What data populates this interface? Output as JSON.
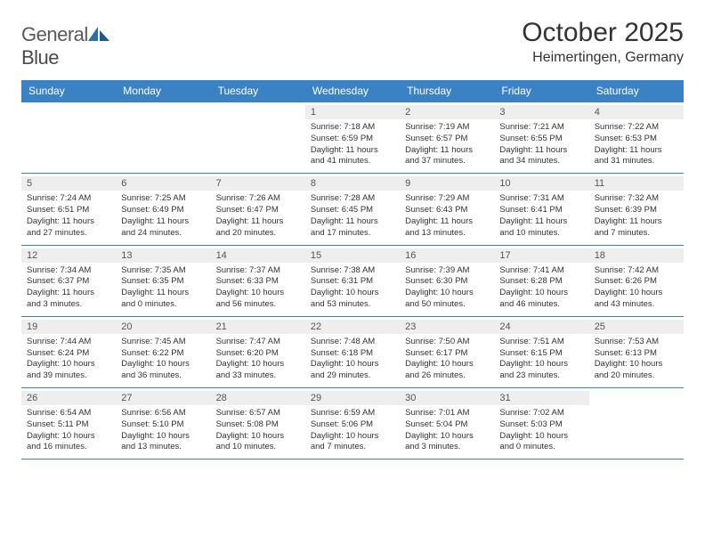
{
  "brand": {
    "text1": "General",
    "text2": "Blue",
    "logo_color": "#2f6fa8"
  },
  "title": "October 2025",
  "location": "Heimertingen, Germany",
  "colors": {
    "header_bg": "#3b82c4",
    "header_fg": "#ffffff",
    "daynum_bg": "#eeeeee",
    "border": "#3b82c4"
  },
  "weekdays": [
    "Sunday",
    "Monday",
    "Tuesday",
    "Wednesday",
    "Thursday",
    "Friday",
    "Saturday"
  ],
  "weeks": [
    [
      {
        "day": "",
        "sunrise": "",
        "sunset": "",
        "daylight": ""
      },
      {
        "day": "",
        "sunrise": "",
        "sunset": "",
        "daylight": ""
      },
      {
        "day": "",
        "sunrise": "",
        "sunset": "",
        "daylight": ""
      },
      {
        "day": "1",
        "sunrise": "Sunrise: 7:18 AM",
        "sunset": "Sunset: 6:59 PM",
        "daylight": "Daylight: 11 hours and 41 minutes."
      },
      {
        "day": "2",
        "sunrise": "Sunrise: 7:19 AM",
        "sunset": "Sunset: 6:57 PM",
        "daylight": "Daylight: 11 hours and 37 minutes."
      },
      {
        "day": "3",
        "sunrise": "Sunrise: 7:21 AM",
        "sunset": "Sunset: 6:55 PM",
        "daylight": "Daylight: 11 hours and 34 minutes."
      },
      {
        "day": "4",
        "sunrise": "Sunrise: 7:22 AM",
        "sunset": "Sunset: 6:53 PM",
        "daylight": "Daylight: 11 hours and 31 minutes."
      }
    ],
    [
      {
        "day": "5",
        "sunrise": "Sunrise: 7:24 AM",
        "sunset": "Sunset: 6:51 PM",
        "daylight": "Daylight: 11 hours and 27 minutes."
      },
      {
        "day": "6",
        "sunrise": "Sunrise: 7:25 AM",
        "sunset": "Sunset: 6:49 PM",
        "daylight": "Daylight: 11 hours and 24 minutes."
      },
      {
        "day": "7",
        "sunrise": "Sunrise: 7:26 AM",
        "sunset": "Sunset: 6:47 PM",
        "daylight": "Daylight: 11 hours and 20 minutes."
      },
      {
        "day": "8",
        "sunrise": "Sunrise: 7:28 AM",
        "sunset": "Sunset: 6:45 PM",
        "daylight": "Daylight: 11 hours and 17 minutes."
      },
      {
        "day": "9",
        "sunrise": "Sunrise: 7:29 AM",
        "sunset": "Sunset: 6:43 PM",
        "daylight": "Daylight: 11 hours and 13 minutes."
      },
      {
        "day": "10",
        "sunrise": "Sunrise: 7:31 AM",
        "sunset": "Sunset: 6:41 PM",
        "daylight": "Daylight: 11 hours and 10 minutes."
      },
      {
        "day": "11",
        "sunrise": "Sunrise: 7:32 AM",
        "sunset": "Sunset: 6:39 PM",
        "daylight": "Daylight: 11 hours and 7 minutes."
      }
    ],
    [
      {
        "day": "12",
        "sunrise": "Sunrise: 7:34 AM",
        "sunset": "Sunset: 6:37 PM",
        "daylight": "Daylight: 11 hours and 3 minutes."
      },
      {
        "day": "13",
        "sunrise": "Sunrise: 7:35 AM",
        "sunset": "Sunset: 6:35 PM",
        "daylight": "Daylight: 11 hours and 0 minutes."
      },
      {
        "day": "14",
        "sunrise": "Sunrise: 7:37 AM",
        "sunset": "Sunset: 6:33 PM",
        "daylight": "Daylight: 10 hours and 56 minutes."
      },
      {
        "day": "15",
        "sunrise": "Sunrise: 7:38 AM",
        "sunset": "Sunset: 6:31 PM",
        "daylight": "Daylight: 10 hours and 53 minutes."
      },
      {
        "day": "16",
        "sunrise": "Sunrise: 7:39 AM",
        "sunset": "Sunset: 6:30 PM",
        "daylight": "Daylight: 10 hours and 50 minutes."
      },
      {
        "day": "17",
        "sunrise": "Sunrise: 7:41 AM",
        "sunset": "Sunset: 6:28 PM",
        "daylight": "Daylight: 10 hours and 46 minutes."
      },
      {
        "day": "18",
        "sunrise": "Sunrise: 7:42 AM",
        "sunset": "Sunset: 6:26 PM",
        "daylight": "Daylight: 10 hours and 43 minutes."
      }
    ],
    [
      {
        "day": "19",
        "sunrise": "Sunrise: 7:44 AM",
        "sunset": "Sunset: 6:24 PM",
        "daylight": "Daylight: 10 hours and 39 minutes."
      },
      {
        "day": "20",
        "sunrise": "Sunrise: 7:45 AM",
        "sunset": "Sunset: 6:22 PM",
        "daylight": "Daylight: 10 hours and 36 minutes."
      },
      {
        "day": "21",
        "sunrise": "Sunrise: 7:47 AM",
        "sunset": "Sunset: 6:20 PM",
        "daylight": "Daylight: 10 hours and 33 minutes."
      },
      {
        "day": "22",
        "sunrise": "Sunrise: 7:48 AM",
        "sunset": "Sunset: 6:18 PM",
        "daylight": "Daylight: 10 hours and 29 minutes."
      },
      {
        "day": "23",
        "sunrise": "Sunrise: 7:50 AM",
        "sunset": "Sunset: 6:17 PM",
        "daylight": "Daylight: 10 hours and 26 minutes."
      },
      {
        "day": "24",
        "sunrise": "Sunrise: 7:51 AM",
        "sunset": "Sunset: 6:15 PM",
        "daylight": "Daylight: 10 hours and 23 minutes."
      },
      {
        "day": "25",
        "sunrise": "Sunrise: 7:53 AM",
        "sunset": "Sunset: 6:13 PM",
        "daylight": "Daylight: 10 hours and 20 minutes."
      }
    ],
    [
      {
        "day": "26",
        "sunrise": "Sunrise: 6:54 AM",
        "sunset": "Sunset: 5:11 PM",
        "daylight": "Daylight: 10 hours and 16 minutes."
      },
      {
        "day": "27",
        "sunrise": "Sunrise: 6:56 AM",
        "sunset": "Sunset: 5:10 PM",
        "daylight": "Daylight: 10 hours and 13 minutes."
      },
      {
        "day": "28",
        "sunrise": "Sunrise: 6:57 AM",
        "sunset": "Sunset: 5:08 PM",
        "daylight": "Daylight: 10 hours and 10 minutes."
      },
      {
        "day": "29",
        "sunrise": "Sunrise: 6:59 AM",
        "sunset": "Sunset: 5:06 PM",
        "daylight": "Daylight: 10 hours and 7 minutes."
      },
      {
        "day": "30",
        "sunrise": "Sunrise: 7:01 AM",
        "sunset": "Sunset: 5:04 PM",
        "daylight": "Daylight: 10 hours and 3 minutes."
      },
      {
        "day": "31",
        "sunrise": "Sunrise: 7:02 AM",
        "sunset": "Sunset: 5:03 PM",
        "daylight": "Daylight: 10 hours and 0 minutes."
      },
      {
        "day": "",
        "sunrise": "",
        "sunset": "",
        "daylight": ""
      }
    ]
  ]
}
